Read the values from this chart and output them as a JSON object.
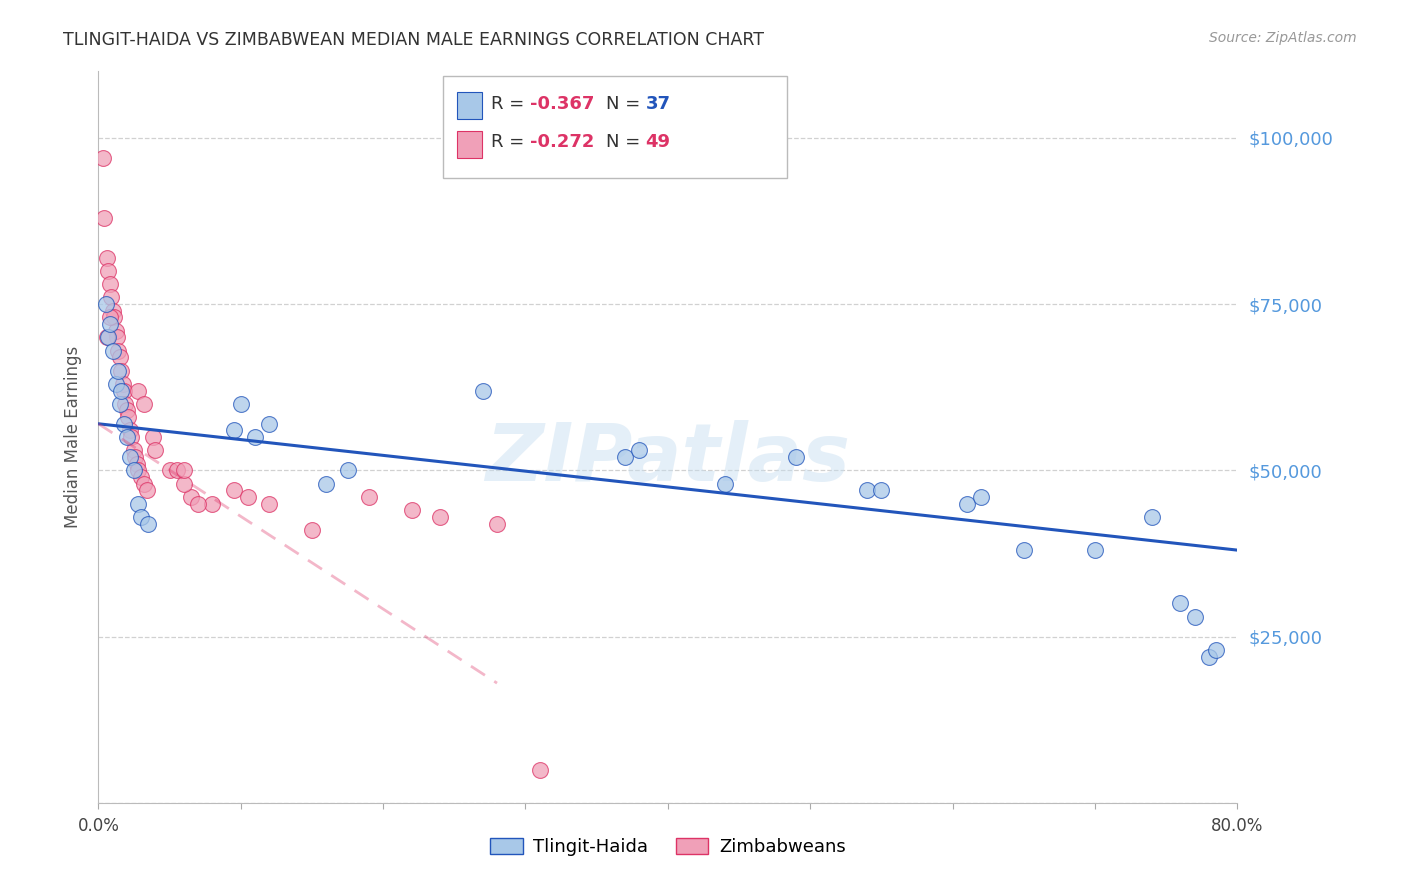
{
  "title": "TLINGIT-HAIDA VS ZIMBABWEAN MEDIAN MALE EARNINGS CORRELATION CHART",
  "source": "Source: ZipAtlas.com",
  "ylabel": "Median Male Earnings",
  "xlim": [
    0.0,
    0.8
  ],
  "ylim": [
    0,
    110000
  ],
  "yticks": [
    0,
    25000,
    50000,
    75000,
    100000
  ],
  "ytick_labels": [
    "",
    "$25,000",
    "$50,000",
    "$75,000",
    "$100,000"
  ],
  "xticks": [
    0.0,
    0.1,
    0.2,
    0.3,
    0.4,
    0.5,
    0.6,
    0.7,
    0.8
  ],
  "xtick_labels": [
    "0.0%",
    "",
    "",
    "",
    "",
    "",
    "",
    "",
    "80.0%"
  ],
  "tlingit_color": "#a8c8e8",
  "zimbabwean_color": "#f0a0b8",
  "trendline_tlingit_color": "#2255bb",
  "trendline_zimbabwean_color": "#dd3366",
  "watermark": "ZIPatlas",
  "tlingit_x": [
    0.005,
    0.007,
    0.008,
    0.01,
    0.012,
    0.014,
    0.015,
    0.016,
    0.018,
    0.02,
    0.022,
    0.025,
    0.028,
    0.03,
    0.035,
    0.095,
    0.1,
    0.11,
    0.12,
    0.16,
    0.175,
    0.27,
    0.37,
    0.38,
    0.44,
    0.49,
    0.54,
    0.55,
    0.61,
    0.62,
    0.65,
    0.7,
    0.74,
    0.76,
    0.77,
    0.78,
    0.785
  ],
  "tlingit_y": [
    75000,
    70000,
    72000,
    68000,
    63000,
    65000,
    60000,
    62000,
    57000,
    55000,
    52000,
    50000,
    45000,
    43000,
    42000,
    56000,
    60000,
    55000,
    57000,
    48000,
    50000,
    62000,
    52000,
    53000,
    48000,
    52000,
    47000,
    47000,
    45000,
    46000,
    38000,
    38000,
    43000,
    30000,
    28000,
    22000,
    23000
  ],
  "zimbabwean_x": [
    0.003,
    0.004,
    0.006,
    0.007,
    0.008,
    0.009,
    0.01,
    0.011,
    0.012,
    0.013,
    0.014,
    0.015,
    0.016,
    0.017,
    0.018,
    0.019,
    0.02,
    0.021,
    0.022,
    0.023,
    0.025,
    0.026,
    0.027,
    0.028,
    0.03,
    0.032,
    0.034,
    0.038,
    0.04,
    0.05,
    0.055,
    0.065,
    0.08,
    0.095,
    0.105,
    0.12,
    0.15,
    0.19,
    0.22,
    0.24,
    0.28,
    0.06,
    0.06,
    0.07,
    0.028,
    0.032,
    0.008,
    0.31,
    0.006
  ],
  "zimbabwean_y": [
    97000,
    88000,
    82000,
    80000,
    78000,
    76000,
    74000,
    73000,
    71000,
    70000,
    68000,
    67000,
    65000,
    63000,
    62000,
    60000,
    59000,
    58000,
    56000,
    55000,
    53000,
    52000,
    51000,
    50000,
    49000,
    48000,
    47000,
    55000,
    53000,
    50000,
    50000,
    46000,
    45000,
    47000,
    46000,
    45000,
    41000,
    46000,
    44000,
    43000,
    42000,
    48000,
    50000,
    45000,
    62000,
    60000,
    73000,
    5000,
    70000
  ],
  "trendline_tlingit_x0": 0.0,
  "trendline_tlingit_x1": 0.8,
  "trendline_tlingit_y0": 57000,
  "trendline_tlingit_y1": 38000,
  "trendline_zimbabwean_x0": 0.0,
  "trendline_zimbabwean_x1": 0.28,
  "trendline_zimbabwean_y0": 57000,
  "trendline_zimbabwean_y1": 18000
}
